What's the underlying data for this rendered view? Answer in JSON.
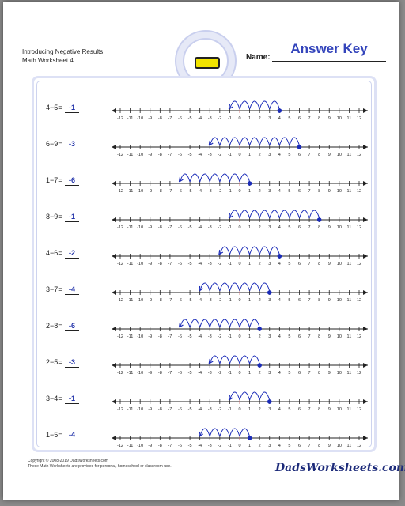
{
  "header": {
    "title_line1": "Introducing Negative Results",
    "title_line2": "Math Worksheet 4",
    "name_label": "Name:",
    "answer_key": "Answer Key"
  },
  "icons": {
    "badge": "pencil-icon"
  },
  "colors": {
    "accent": "#3344bb",
    "arc": "#1a2bb8",
    "frame": "#dde1f5"
  },
  "number_line": {
    "ticks": [
      -12,
      -11,
      -10,
      -9,
      -8,
      -7,
      -6,
      -5,
      -4,
      -3,
      -2,
      -1,
      0,
      1,
      2,
      3,
      4,
      5,
      6,
      7,
      8,
      9,
      10,
      11,
      12
    ]
  },
  "problems": [
    {
      "expr": "4−5=",
      "answer": "-1",
      "start": 4,
      "end": -1
    },
    {
      "expr": "6−9=",
      "answer": "-3",
      "start": 6,
      "end": -3
    },
    {
      "expr": "1−7=",
      "answer": "-6",
      "start": 1,
      "end": -6
    },
    {
      "expr": "8−9=",
      "answer": "-1",
      "start": 8,
      "end": -1
    },
    {
      "expr": "4−6=",
      "answer": "-2",
      "start": 4,
      "end": -2
    },
    {
      "expr": "3−7=",
      "answer": "-4",
      "start": 3,
      "end": -4
    },
    {
      "expr": "2−8=",
      "answer": "-6",
      "start": 2,
      "end": -6
    },
    {
      "expr": "2−5=",
      "answer": "-3",
      "start": 2,
      "end": -3
    },
    {
      "expr": "3−4=",
      "answer": "-1",
      "start": 3,
      "end": -1
    },
    {
      "expr": "1−5=",
      "answer": "-4",
      "start": 1,
      "end": -4
    }
  ],
  "footer": {
    "copyright": "Copyright © 2008-2019 DadsWorksheets.com",
    "usage": "These Math Worksheets are provided for personal, homeschool or classroom use.",
    "logo_text": "DadsWorksheets.com"
  }
}
